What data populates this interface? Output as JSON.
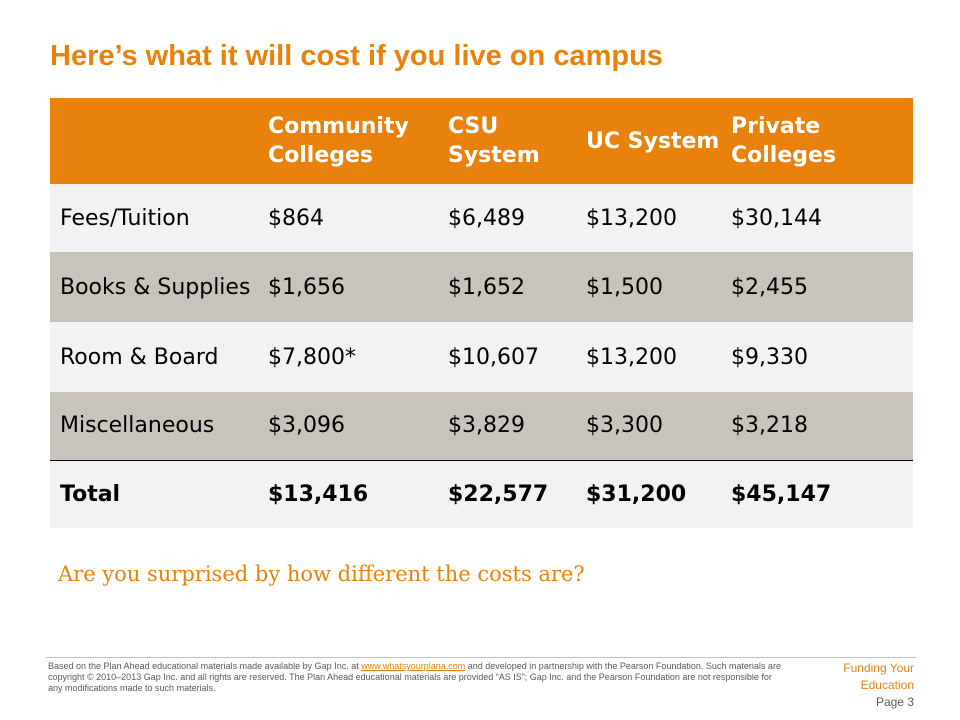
{
  "title": "Here’s what it will cost if you live on campus",
  "table": {
    "headers": [
      "",
      "Community Colleges",
      "CSU System",
      "UC System",
      "Private Colleges"
    ],
    "rows": [
      [
        "Fees/Tuition",
        "$864",
        "$6,489",
        "$13,200",
        "$30,144"
      ],
      [
        "Books & Supplies",
        "$1,656",
        "$1,652",
        "$1,500",
        "$2,455"
      ],
      [
        "Room & Board",
        "$7,800*",
        "$10,607",
        "$13,200",
        "$9,330"
      ],
      [
        "Miscellaneous",
        "$3,096",
        "$3,829",
        "$3,300",
        "$3,218"
      ],
      [
        "Total",
        "$13,416",
        "$22,577",
        "$31,200",
        "$45,147"
      ]
    ]
  },
  "prompt": "Are you surprised by how different the costs are?",
  "footer": {
    "note_before_link": "Based on the Plan Ahead educational materials made available by Gap Inc. at ",
    "link_text": "www.whatsyourplana.com",
    "note_after_link": " and developed in partnership with the Pearson Foundation.  Such materials are copyright © 2010–2013 Gap Inc. and all rights are reserved. The Plan Ahead educational materials are provided “AS IS”; Gap Inc. and the Pearson Foundation are not responsible for any modifications made to such materials.",
    "section_name": "Funding Your Education",
    "page_label": "Page 3"
  },
  "colors": {
    "accent": "#e8820c",
    "row_light": "#f2f2f2",
    "row_dark": "#c8c3bb"
  }
}
